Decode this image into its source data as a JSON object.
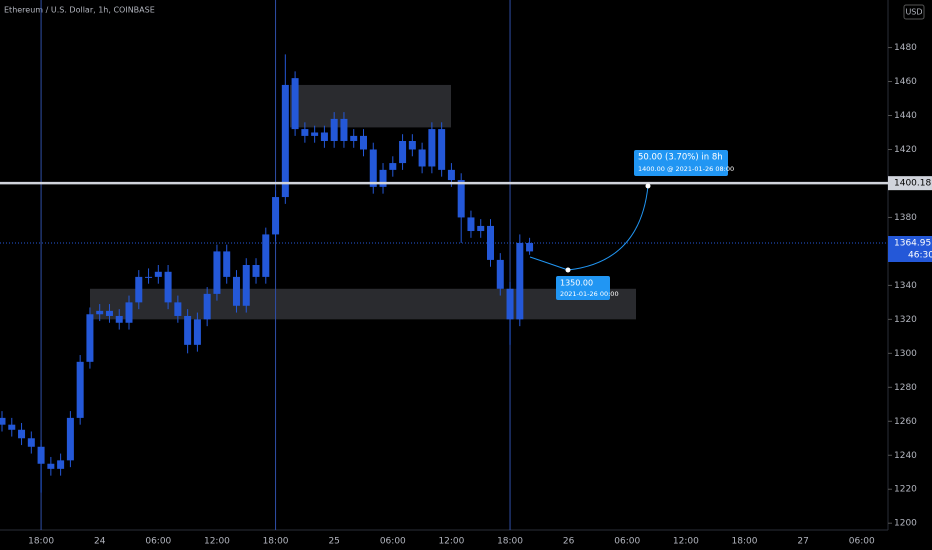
{
  "chart_data": {
    "type": "candlestick",
    "title": "Ethereum / U.S. Dollar, 1h, COINBASE",
    "currency": "USD",
    "color": "#2458d8",
    "categories": [
      null,
      null,
      null,
      null,
      "18:00",
      null,
      null,
      null,
      null,
      null,
      "24",
      null,
      null,
      null,
      null,
      null,
      "06:00",
      null,
      null,
      null,
      null,
      null,
      "12:00",
      null,
      null,
      null,
      null,
      null,
      "18:00",
      null,
      null,
      null,
      null,
      null,
      "25",
      null,
      null,
      null,
      null,
      null,
      "06:00",
      null,
      null,
      null,
      null,
      null,
      "12:00",
      null,
      null,
      null,
      null,
      null,
      "18:00",
      null,
      null,
      null,
      null,
      null,
      "26",
      null,
      null,
      null,
      null,
      null,
      "06:00",
      null,
      null,
      null,
      null,
      null,
      "12:00",
      null,
      null,
      null,
      null,
      null,
      "18:00",
      null,
      null,
      null,
      null,
      null,
      "27",
      null,
      null,
      null,
      null,
      null,
      "06:00",
      null,
      null
    ],
    "open": [
      1262,
      1258,
      1255,
      1250,
      1245,
      1235,
      1232,
      1237,
      1262,
      1295,
      1323,
      1325,
      1322,
      1318,
      1330,
      1345,
      1345,
      1348,
      1330,
      1322,
      1305,
      1320,
      1335,
      1360,
      1345,
      1328,
      1352,
      1345,
      1370,
      1392,
      1462,
      1432,
      1428,
      1430,
      1425,
      1438,
      1425,
      1428,
      1420,
      1398,
      1408,
      1412,
      1425,
      1420,
      1410,
      1432,
      1408,
      1402,
      1380,
      1372,
      1375,
      1355,
      1338,
      1320,
      1360,
      null,
      null,
      null,
      null,
      null,
      null,
      null,
      null,
      null,
      null,
      null,
      null,
      null,
      null,
      null,
      null,
      null,
      null,
      null,
      null,
      null,
      null,
      null,
      null,
      null,
      null,
      null,
      null,
      null,
      null,
      null,
      null,
      null,
      null,
      null,
      null
    ],
    "high": [
      1266,
      1262,
      1259,
      1254,
      1249,
      1239,
      1241,
      1266,
      1299,
      1327,
      1329,
      1329,
      1326,
      1334,
      1349,
      1350,
      1352,
      1352,
      1334,
      1326,
      1324,
      1339,
      1364,
      1364,
      1349,
      1356,
      1356,
      1374,
      1396,
      1476,
      1466,
      1436,
      1434,
      1434,
      1442,
      1442,
      1432,
      1432,
      1424,
      1412,
      1416,
      1429,
      1429,
      1424,
      1436,
      1436,
      1412,
      1406,
      1384,
      1379,
      1379,
      1359,
      1342,
      1370,
      1368,
      null,
      null,
      null,
      null,
      null,
      null,
      null,
      null,
      null,
      null,
      null,
      null,
      null,
      null,
      null,
      null,
      null,
      null,
      null,
      null,
      null,
      null,
      null,
      null,
      null,
      null,
      null,
      null,
      null,
      null,
      null,
      null,
      null,
      null,
      null,
      null
    ],
    "low": [
      1254,
      1251,
      1246,
      1241,
      1218,
      1228,
      1228,
      1233,
      1258,
      1291,
      1319,
      1318,
      1314,
      1314,
      1326,
      1341,
      1341,
      1326,
      1318,
      1300,
      1301,
      1316,
      1331,
      1341,
      1324,
      1324,
      1341,
      1341,
      1366,
      1388,
      1428,
      1424,
      1424,
      1421,
      1421,
      1421,
      1421,
      1416,
      1394,
      1394,
      1404,
      1408,
      1416,
      1406,
      1406,
      1404,
      1398,
      1365,
      1368,
      1368,
      1351,
      1334,
      1305,
      1316,
      1358,
      null,
      null,
      null,
      null,
      null,
      null,
      null,
      null,
      null,
      null,
      null,
      null,
      null,
      null,
      null,
      null,
      null,
      null,
      null,
      null,
      null,
      null,
      null,
      null,
      null,
      null,
      null,
      null,
      null,
      null,
      null,
      null,
      null,
      null,
      null,
      null
    ],
    "close": [
      1258,
      1255,
      1250,
      1245,
      1235,
      1232,
      1237,
      1262,
      1295,
      1323,
      1325,
      1322,
      1318,
      1330,
      1345,
      1345,
      1348,
      1330,
      1322,
      1305,
      1320,
      1335,
      1360,
      1345,
      1328,
      1352,
      1345,
      1370,
      1392,
      1458,
      1432,
      1428,
      1430,
      1425,
      1438,
      1425,
      1428,
      1420,
      1398,
      1408,
      1412,
      1425,
      1420,
      1410,
      1432,
      1408,
      1402,
      1380,
      1372,
      1375,
      1355,
      1338,
      1320,
      1365,
      1364.95,
      null,
      null,
      null,
      null,
      null,
      null,
      null,
      null,
      null,
      null,
      null,
      null,
      null,
      null,
      null,
      null,
      null,
      null,
      null,
      null,
      null,
      null,
      null,
      null,
      null,
      null,
      null,
      null,
      null,
      null,
      null,
      null,
      null,
      null,
      null,
      null
    ],
    "countdown": "46:30",
    "ylim": [
      1196,
      1508
    ],
    "yticks": [
      1200,
      1220,
      1240,
      1260,
      1280,
      1300,
      1320,
      1340,
      1360,
      1380,
      1400,
      1420,
      1440,
      1460,
      1480
    ],
    "hline": 1400.18,
    "zones": [
      {
        "low": 1433,
        "high": 1458
      },
      {
        "low": 1320,
        "high": 1338
      }
    ],
    "projection": {
      "start_price": "1350.00",
      "start_time": "2021-01-26 00:00",
      "change": "50.00 (3.70%) in 8h",
      "target": "1400.00 @ 2021-01-26  08:00"
    }
  }
}
